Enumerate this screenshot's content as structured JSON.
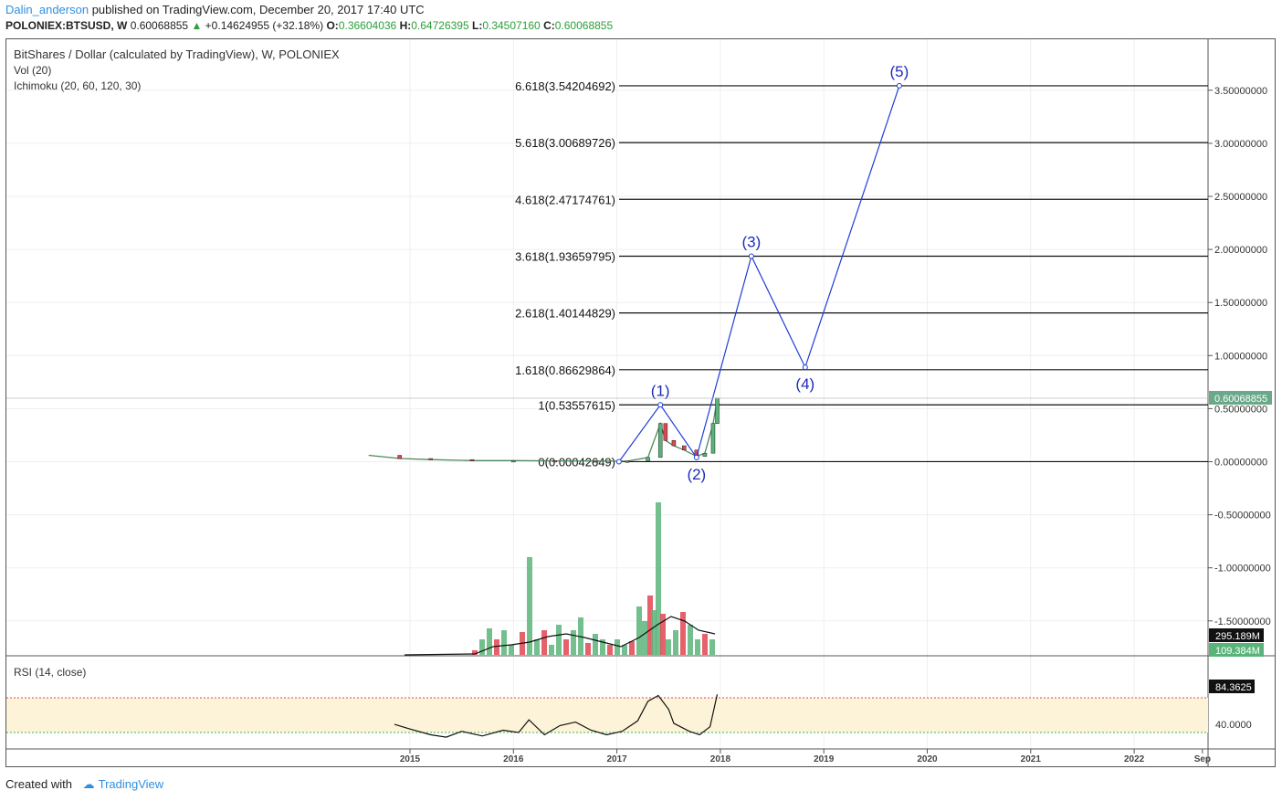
{
  "header": {
    "user": "Dalin_anderson",
    "published": "published on TradingView.com, December 20, 2017 17:40 UTC",
    "symbol": "POLONIEX:BTSUSD, W",
    "price": "0.60068855",
    "change_arrow": "▲",
    "change": "+0.14624955 (+32.18%)",
    "o_label": "O:",
    "o": "0.36604036",
    "h_label": "H:",
    "h": "0.64726395",
    "l_label": "L:",
    "l": "0.34507160",
    "c_label": "C:",
    "c": "0.60068855"
  },
  "legend": {
    "title": "BitShares / Dollar (calculated by TradingView), W, POLONIEX",
    "vol": "Vol (20)",
    "ichimoku": "Ichimoku (20, 60, 120, 30)",
    "rsi": "RSI (14, close)"
  },
  "price_axis": {
    "ticks": [
      "3.50000000",
      "3.00000000",
      "2.50000000",
      "2.00000000",
      "1.50000000",
      "1.00000000",
      "0.50000000",
      "0.00000000",
      "-0.50000000",
      "-1.00000000",
      "-1.50000000"
    ],
    "tick_values": [
      3.5,
      3.0,
      2.5,
      2.0,
      1.5,
      1.0,
      0.5,
      0.0,
      -0.5,
      -1.0,
      -1.5
    ],
    "last_price_badge": "0.60068855",
    "vol_badge_1": "295.189M",
    "vol_badge_2": "109.384M"
  },
  "rsi_axis": {
    "value_badge": "84.3625",
    "tick": "40.0000"
  },
  "time_axis": {
    "labels": [
      "2015",
      "2016",
      "2017",
      "2018",
      "2019",
      "2020",
      "2021",
      "2022",
      "Sep"
    ]
  },
  "fib_levels": [
    {
      "label": "6.618(3.54204692)",
      "value": 3.54204692
    },
    {
      "label": "5.618(3.00689726)",
      "value": 3.00689726
    },
    {
      "label": "4.618(2.47174761)",
      "value": 2.47174761
    },
    {
      "label": "3.618(1.93659795)",
      "value": 1.93659795
    },
    {
      "label": "2.618(1.40144829)",
      "value": 1.40144829
    },
    {
      "label": "1.618(0.86629864)",
      "value": 0.86629864
    },
    {
      "label": "1(0.53557615)",
      "value": 0.53557615
    },
    {
      "label": "0(0.00042649)",
      "value": 0.00042649
    }
  ],
  "wave_labels": [
    "(1)",
    "(2)",
    "(3)",
    "(4)",
    "(5)"
  ],
  "colors": {
    "wave": "#1f3fd6",
    "up": "#5ab47a",
    "down": "#e04552",
    "badge_green": "#6aa88a",
    "rsi_band": "#fdf3d8"
  },
  "footer": {
    "created": "Created with",
    "brand": "TradingView"
  },
  "chart_data": {
    "type": "line",
    "title": "BitShares / Dollar (calculated by TradingView), W, POLONIEX",
    "x_unit": "year",
    "elliott_wave": {
      "x": [
        2017.02,
        2017.42,
        2017.77,
        2018.3,
        2018.82,
        2019.73
      ],
      "y": [
        0.0004,
        0.5356,
        0.04,
        1.9366,
        0.89,
        3.542
      ],
      "labels": [
        "",
        "(1)",
        "(2)",
        "(3)",
        "(4)",
        "(5)"
      ]
    },
    "price_close": {
      "x": [
        2014.6,
        2014.9,
        2015.2,
        2015.6,
        2016.0,
        2016.4,
        2016.8,
        2017.1,
        2017.3,
        2017.42,
        2017.47,
        2017.55,
        2017.65,
        2017.77,
        2017.85,
        2017.93,
        2017.97
      ],
      "y": [
        0.06,
        0.03,
        0.02,
        0.01,
        0.01,
        0.008,
        0.006,
        0.005,
        0.04,
        0.36,
        0.2,
        0.15,
        0.11,
        0.05,
        0.08,
        0.36,
        0.6
      ]
    },
    "rsi": {
      "x": [
        2014.85,
        2015.0,
        2015.2,
        2015.35,
        2015.5,
        2015.7,
        2015.9,
        2016.05,
        2016.15,
        2016.3,
        2016.45,
        2016.6,
        2016.75,
        2016.9,
        2017.05,
        2017.2,
        2017.3,
        2017.4,
        2017.5,
        2017.55,
        2017.7,
        2017.8,
        2017.9,
        2017.97
      ],
      "y": [
        47,
        43,
        38,
        36,
        41,
        37,
        42,
        40,
        51,
        38,
        46,
        49,
        42,
        38,
        41,
        50,
        67,
        72,
        60,
        48,
        41,
        38,
        45,
        73
      ]
    },
    "rsi_levels": [
      70,
      30
    ],
    "ylim": [
      -1.8,
      3.8
    ]
  }
}
